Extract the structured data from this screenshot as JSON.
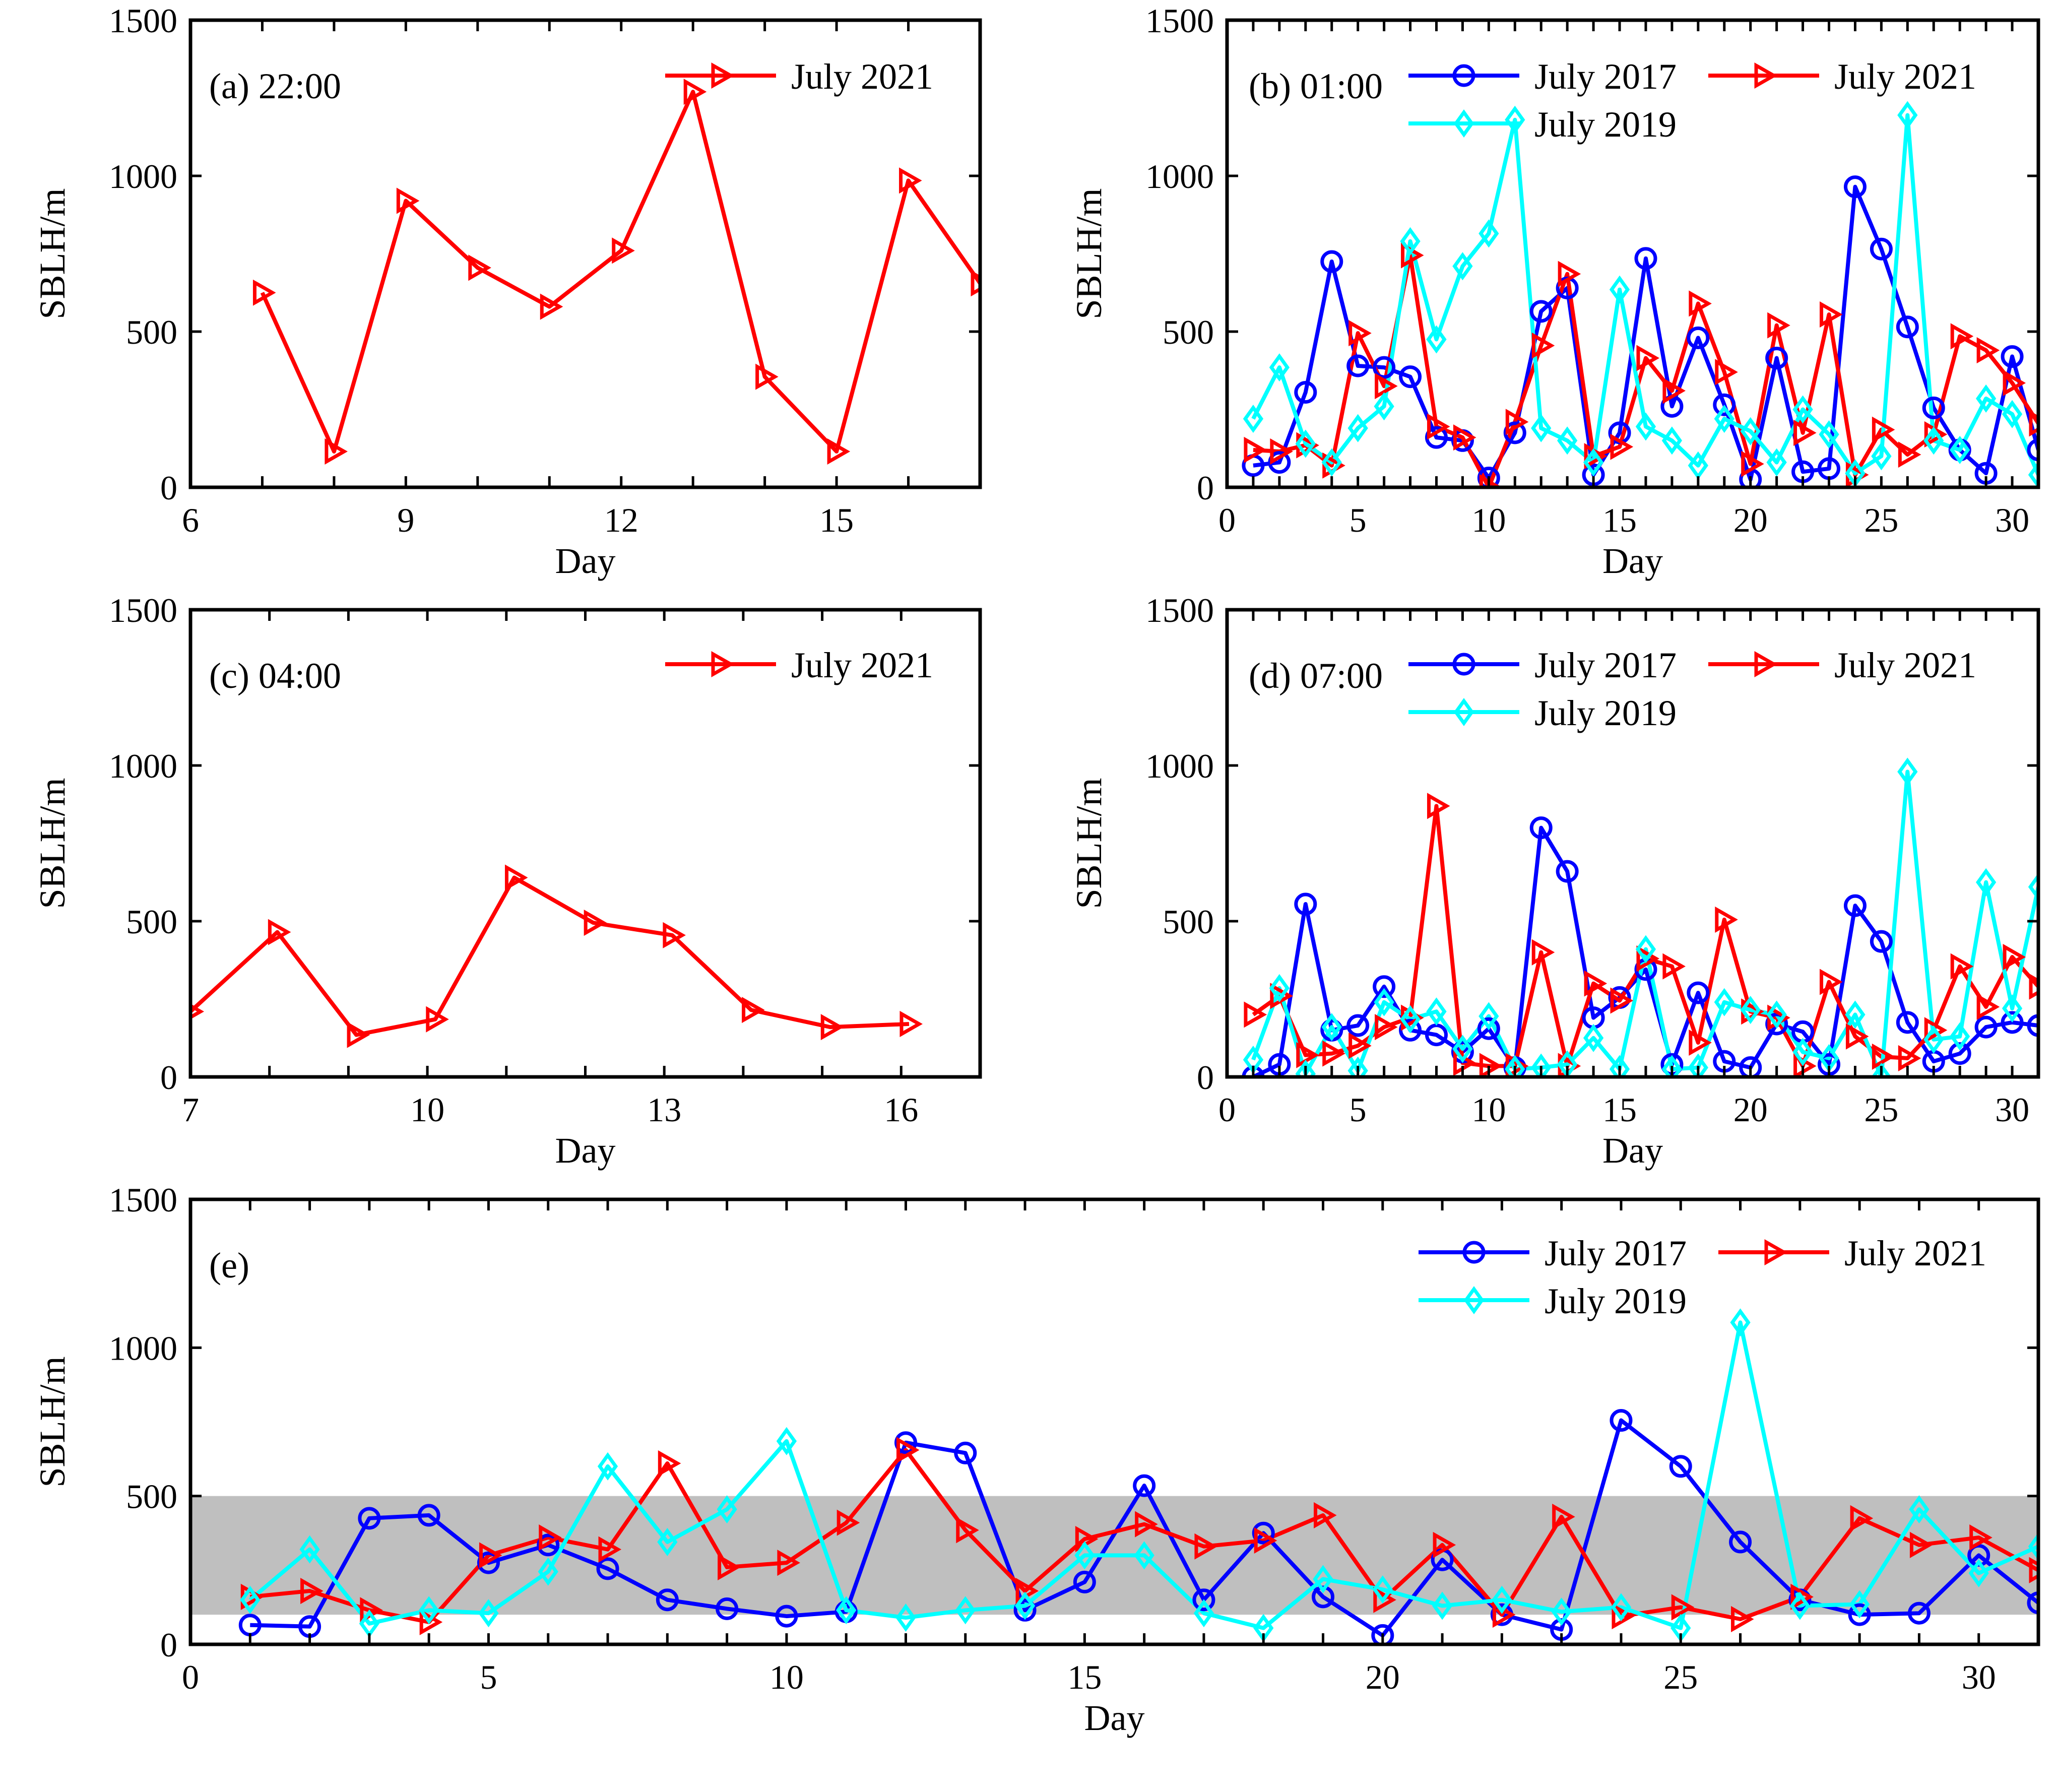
{
  "chart_data": [
    {
      "id": "a",
      "type": "line",
      "panel_label": "(a) 22:00",
      "xlabel": "Day",
      "ylabel": "SBLH/m",
      "xlim": [
        6,
        17
      ],
      "ylim": [
        0,
        1500
      ],
      "xticks": [
        6,
        9,
        12,
        15
      ],
      "yticks": [
        0,
        500,
        1000,
        1500
      ],
      "legend_position": "top-right",
      "series": [
        {
          "name": "July 2021",
          "color": "#ff0000",
          "marker": "triangle-right",
          "x": [
            7,
            8,
            9,
            10,
            11,
            12,
            13,
            14,
            15,
            16,
            17
          ],
          "values": [
            625,
            115,
            920,
            705,
            580,
            760,
            1270,
            355,
            115,
            985,
            655
          ]
        }
      ]
    },
    {
      "id": "b",
      "type": "line",
      "panel_label": "(b) 01:00",
      "xlabel": "Day",
      "ylabel": "SBLH/m",
      "xlim": [
        0,
        31
      ],
      "ylim": [
        0,
        1500
      ],
      "xticks": [
        0,
        5,
        10,
        15,
        20,
        25,
        30
      ],
      "yticks": [
        0,
        500,
        1000,
        1500
      ],
      "legend_position": "top",
      "series": [
        {
          "name": "July 2017",
          "color": "#0000ff",
          "marker": "circle",
          "x": [
            1,
            2,
            3,
            4,
            5,
            6,
            7,
            8,
            9,
            10,
            11,
            12,
            13,
            14,
            15,
            16,
            17,
            18,
            19,
            20,
            21,
            22,
            23,
            24,
            25,
            26,
            27,
            28,
            29,
            30,
            31
          ],
          "values": [
            70,
            80,
            305,
            725,
            390,
            385,
            355,
            160,
            150,
            30,
            175,
            565,
            640,
            40,
            175,
            735,
            260,
            480,
            265,
            25,
            415,
            50,
            60,
            965,
            765,
            515,
            255,
            120,
            45,
            420,
            120
          ]
        },
        {
          "name": "July 2021",
          "color": "#ff0000",
          "marker": "triangle-right",
          "x": [
            1,
            2,
            3,
            4,
            5,
            6,
            7,
            8,
            9,
            10,
            11,
            12,
            13,
            14,
            15,
            16,
            17,
            18,
            19,
            20,
            21,
            22,
            23,
            24,
            25,
            26,
            27,
            28,
            29,
            30,
            31
          ],
          "values": [
            120,
            115,
            135,
            70,
            495,
            325,
            745,
            195,
            160,
            0,
            210,
            455,
            685,
            100,
            130,
            415,
            310,
            590,
            370,
            75,
            520,
            175,
            555,
            40,
            185,
            105,
            170,
            485,
            440,
            335,
            205
          ]
        },
        {
          "name": "July 2019",
          "color": "#00ffff",
          "marker": "diamond",
          "x": [
            1,
            2,
            3,
            4,
            5,
            6,
            7,
            8,
            9,
            10,
            11,
            12,
            13,
            14,
            15,
            16,
            17,
            18,
            19,
            20,
            21,
            22,
            23,
            24,
            25,
            26,
            27,
            28,
            29,
            30,
            31
          ],
          "values": [
            220,
            385,
            140,
            80,
            190,
            260,
            790,
            475,
            710,
            815,
            1180,
            190,
            150,
            80,
            635,
            195,
            150,
            70,
            220,
            180,
            80,
            250,
            170,
            45,
            100,
            1195,
            150,
            120,
            285,
            235,
            40
          ]
        }
      ]
    },
    {
      "id": "c",
      "type": "line",
      "panel_label": "(c) 04:00",
      "xlabel": "Day",
      "ylabel": "SBLH/m",
      "xlim": [
        7,
        17
      ],
      "ylim": [
        0,
        1500
      ],
      "xticks": [
        7,
        10,
        13,
        16
      ],
      "yticks": [
        0,
        500,
        1000,
        1500
      ],
      "legend_position": "top-right",
      "series": [
        {
          "name": "July 2021",
          "color": "#ff0000",
          "marker": "triangle-right",
          "x": [
            7,
            8.1,
            9.1,
            10.1,
            11.1,
            12.1,
            13.1,
            14.1,
            15.1,
            16.1
          ],
          "values": [
            210,
            465,
            135,
            185,
            640,
            495,
            455,
            215,
            160,
            170
          ]
        }
      ]
    },
    {
      "id": "d",
      "type": "line",
      "panel_label": "(d) 07:00",
      "xlabel": "Day",
      "ylabel": "SBLH/m",
      "xlim": [
        0,
        31
      ],
      "ylim": [
        0,
        1500
      ],
      "xticks": [
        0,
        5,
        10,
        15,
        20,
        25,
        30
      ],
      "yticks": [
        0,
        500,
        1000,
        1500
      ],
      "legend_position": "top",
      "series": [
        {
          "name": "July 2017",
          "color": "#0000ff",
          "marker": "circle",
          "x": [
            1,
            2,
            3,
            4,
            5,
            6,
            7,
            8,
            9,
            10,
            11,
            12,
            13,
            14,
            15,
            16,
            17,
            18,
            19,
            20,
            21,
            22,
            23,
            24,
            25,
            26,
            27,
            28,
            29,
            30,
            31
          ],
          "values": [
            0,
            40,
            555,
            150,
            165,
            290,
            150,
            135,
            80,
            155,
            30,
            800,
            660,
            190,
            255,
            345,
            40,
            270,
            50,
            30,
            170,
            145,
            40,
            550,
            435,
            175,
            50,
            75,
            160,
            175,
            165
          ]
        },
        {
          "name": "July 2021",
          "color": "#ff0000",
          "marker": "triangle-right",
          "x": [
            1,
            2,
            3,
            4,
            5,
            6,
            7,
            8,
            9,
            10,
            11,
            12,
            13,
            14,
            15,
            16,
            17,
            18,
            19,
            20,
            21,
            22,
            23,
            24,
            25,
            26,
            27,
            28,
            29,
            30,
            31
          ],
          "values": [
            200,
            260,
            70,
            75,
            100,
            160,
            190,
            870,
            45,
            35,
            35,
            400,
            35,
            300,
            245,
            380,
            355,
            110,
            505,
            210,
            190,
            35,
            305,
            130,
            65,
            60,
            150,
            355,
            225,
            385,
            290
          ]
        },
        {
          "name": "July 2019",
          "color": "#00ffff",
          "marker": "diamond",
          "x": [
            1,
            2,
            3,
            4,
            5,
            6,
            7,
            8,
            9,
            10,
            11,
            12,
            13,
            14,
            15,
            16,
            17,
            18,
            19,
            20,
            21,
            22,
            23,
            24,
            25,
            26,
            27,
            28,
            29,
            30,
            31
          ],
          "values": [
            55,
            285,
            10,
            160,
            20,
            240,
            185,
            210,
            90,
            195,
            25,
            30,
            40,
            125,
            25,
            410,
            25,
            30,
            240,
            215,
            200,
            80,
            60,
            200,
            0,
            980,
            120,
            130,
            625,
            220,
            610
          ]
        }
      ]
    },
    {
      "id": "e",
      "type": "line",
      "panel_label": "(e)",
      "xlabel": "Day",
      "ylabel": "SBLH/m",
      "xlim": [
        0,
        31
      ],
      "ylim": [
        0,
        1500
      ],
      "xticks": [
        0,
        5,
        10,
        15,
        20,
        25,
        30
      ],
      "yticks": [
        0,
        500,
        1000,
        1500
      ],
      "shaded_band": [
        100,
        500
      ],
      "legend_position": "top-right",
      "series": [
        {
          "name": "July 2017",
          "color": "#0000ff",
          "marker": "circle",
          "x": [
            1,
            2,
            3,
            4,
            5,
            6,
            7,
            8,
            9,
            10,
            11,
            12,
            13,
            14,
            15,
            16,
            17,
            18,
            19,
            20,
            21,
            22,
            23,
            24,
            25,
            26,
            27,
            28,
            29,
            30,
            31
          ],
          "values": [
            65,
            60,
            425,
            435,
            275,
            335,
            255,
            150,
            120,
            95,
            110,
            680,
            645,
            115,
            210,
            535,
            150,
            375,
            160,
            30,
            285,
            100,
            50,
            755,
            600,
            345,
            150,
            100,
            105,
            300,
            140
          ]
        },
        {
          "name": "July 2021",
          "color": "#ff0000",
          "marker": "triangle-right",
          "x": [
            1,
            2,
            3,
            4,
            5,
            6,
            7,
            8,
            9,
            10,
            11,
            12,
            13,
            14,
            15,
            16,
            17,
            18,
            19,
            20,
            21,
            22,
            23,
            24,
            25,
            26,
            27,
            28,
            29,
            30,
            31
          ],
          "values": [
            160,
            180,
            115,
            75,
            300,
            360,
            320,
            610,
            260,
            275,
            410,
            655,
            385,
            180,
            355,
            405,
            330,
            350,
            435,
            150,
            335,
            100,
            430,
            95,
            125,
            85,
            160,
            425,
            335,
            360,
            250
          ]
        },
        {
          "name": "July 2019",
          "color": "#00ffff",
          "marker": "diamond",
          "x": [
            1,
            2,
            3,
            4,
            5,
            6,
            7,
            8,
            9,
            10,
            11,
            12,
            13,
            14,
            15,
            16,
            17,
            18,
            19,
            20,
            21,
            22,
            23,
            24,
            25,
            26,
            27,
            28,
            29,
            30,
            31
          ],
          "values": [
            150,
            320,
            70,
            115,
            105,
            245,
            600,
            345,
            455,
            685,
            115,
            90,
            115,
            130,
            300,
            300,
            105,
            55,
            220,
            185,
            130,
            150,
            110,
            125,
            55,
            1085,
            130,
            135,
            455,
            240,
            330
          ]
        }
      ]
    }
  ]
}
